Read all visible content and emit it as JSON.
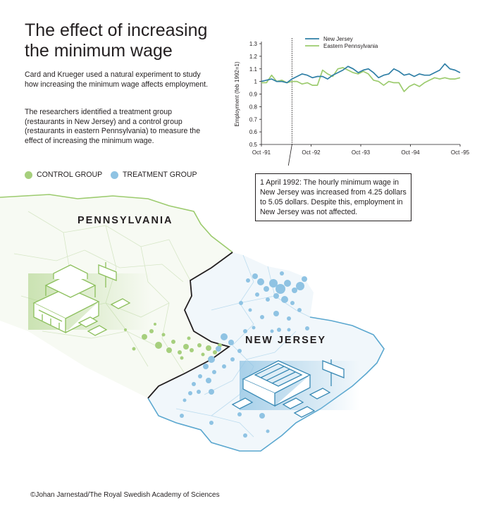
{
  "title": "The effect of increasing the minimum wage",
  "intro": "Card and Krueger used a natural experiment to study how increasing the minimum wage affects employment.",
  "intro2": "The researchers identified a treatment group (restaurants in New Jersey) and a control group (restaurants in eastern Pennsylvania) to measure the effect of increasing the minimum wage.",
  "legend": {
    "control": "CONTROL GROUP",
    "treatment": "TREATMENT GROUP"
  },
  "map": {
    "pa_label": "PENNSYLVANIA",
    "nj_label": "NEW JERSEY"
  },
  "annotation": "1 April 1992: The hourly minimum wage in New Jersey was increased from 4.25 dollars to 5.05 dollars. Despite this, employment in New Jersey was not affected.",
  "credit": "©Johan Jarnestad/The Royal Swedish Academy of Sciences",
  "colors": {
    "control": "#a6cf7d",
    "treatment": "#8fc3e3",
    "nj_line": "#2f7fa6",
    "pa_line": "#9ccb6e"
  },
  "chart_data": {
    "type": "line",
    "title": "",
    "xlabel": "",
    "ylabel": "Employment (feb 1992=1)",
    "xticks": [
      "Oct -91",
      "Oct -92",
      "Oct -93",
      "Oct -94",
      "Oct -95"
    ],
    "yticks": [
      "0.5",
      "0.6",
      "0.7",
      "0.8",
      "0.9",
      "1",
      "1.1",
      "1.2",
      "1.3"
    ],
    "ylim": [
      0.5,
      1.3
    ],
    "event_month": 6,
    "legend_position": "top-right",
    "grid": false,
    "series": [
      {
        "name": "New Jersey",
        "color": "#2f7fa6",
        "values": [
          1.0,
          1.01,
          1.02,
          1.0,
          1.0,
          0.99,
          1.02,
          1.04,
          1.06,
          1.05,
          1.03,
          1.04,
          1.04,
          1.02,
          1.05,
          1.07,
          1.09,
          1.12,
          1.1,
          1.07,
          1.09,
          1.1,
          1.07,
          1.03,
          1.05,
          1.06,
          1.1,
          1.08,
          1.05,
          1.06,
          1.04,
          1.06,
          1.05,
          1.05,
          1.07,
          1.09,
          1.14,
          1.1,
          1.09,
          1.07
        ]
      },
      {
        "name": "Eastern Pennsylvania",
        "color": "#9ccb6e",
        "values": [
          0.99,
          0.99,
          1.05,
          1.0,
          1.01,
          0.99,
          1.0,
          1.0,
          0.98,
          0.99,
          0.97,
          0.97,
          1.09,
          1.06,
          1.04,
          1.1,
          1.11,
          1.09,
          1.07,
          1.06,
          1.08,
          1.06,
          1.01,
          1.0,
          0.97,
          1.0,
          0.99,
          0.99,
          0.92,
          0.96,
          0.98,
          0.96,
          0.99,
          1.01,
          1.03,
          1.02,
          1.03,
          1.02,
          1.02,
          1.03
        ]
      }
    ]
  }
}
